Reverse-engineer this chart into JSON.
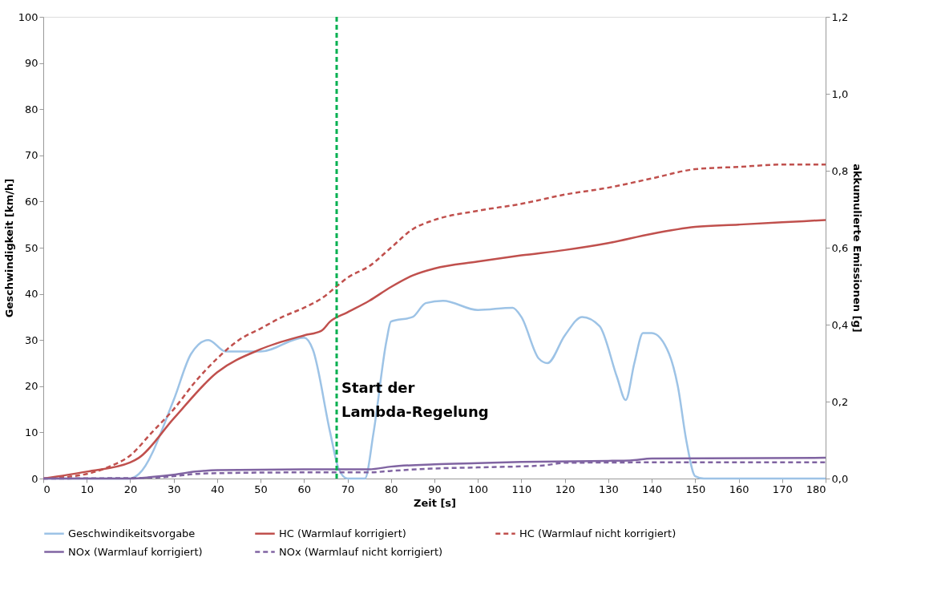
{
  "chart_data": {
    "type": "line",
    "xlabel": "Zeit [s]",
    "ylabel": "Geschwindigkeit [km/h]",
    "y2label": "akkumulierte Emissionen [g]",
    "xlim": [
      0,
      180
    ],
    "xticks": [
      0,
      10,
      20,
      30,
      40,
      50,
      60,
      70,
      80,
      90,
      100,
      110,
      120,
      130,
      140,
      150,
      160,
      170,
      180
    ],
    "ylim": [
      0,
      100
    ],
    "yticks": [
      0,
      10,
      20,
      30,
      40,
      50,
      60,
      70,
      80,
      90,
      100
    ],
    "y2lim": [
      0,
      1.2
    ],
    "y2ticks": [
      {
        "value": 0,
        "label": "0,0"
      },
      {
        "value": 0.2,
        "label": "0,2"
      },
      {
        "value": 0.4,
        "label": "0,4"
      },
      {
        "value": 0.6,
        "label": "0,6"
      },
      {
        "value": 0.8,
        "label": "0,8"
      },
      {
        "value": 1.0,
        "label": "1,0"
      },
      {
        "value": 1.2,
        "label": "1,2"
      }
    ],
    "grid": false,
    "legend": "bottom",
    "marker": "none",
    "series": [
      {
        "name": "Geschwindikeitsvorgabe",
        "color": "#9dc3e6",
        "line_style": "solid",
        "x": [
          0,
          20,
          22,
          30,
          34,
          38,
          42,
          50,
          60,
          62,
          66,
          68,
          70,
          74,
          76,
          79,
          80,
          85,
          88,
          92,
          100,
          108,
          110,
          114,
          116,
          120,
          124,
          128,
          132,
          134,
          136,
          138,
          140,
          144,
          146,
          148,
          150,
          152,
          180
        ],
        "values": [
          0,
          0,
          1,
          17,
          27,
          30,
          27.5,
          27.5,
          30.5,
          28,
          10,
          2,
          0,
          0,
          10,
          30,
          34,
          35,
          38,
          38.5,
          36.5,
          37,
          35,
          26,
          25,
          31,
          35,
          33,
          22,
          17,
          25,
          31.5,
          31.5,
          27,
          20,
          8,
          0.5,
          0,
          0
        ]
      },
      {
        "name": "HC (Warmlauf korrigiert)",
        "color": "#c0504d",
        "line_style": "solid",
        "axis": "y2",
        "x": [
          0,
          10,
          20,
          22,
          30,
          40,
          50,
          60,
          64,
          66,
          70,
          75,
          80,
          85,
          90,
          100,
          110,
          120,
          130,
          140,
          150,
          160,
          170,
          180
        ],
        "values": [
          0,
          0.018,
          0.042,
          0.054,
          0.156,
          0.276,
          0.336,
          0.372,
          0.384,
          0.408,
          0.432,
          0.462,
          0.498,
          0.528,
          0.546,
          0.564,
          0.58,
          0.594,
          0.612,
          0.636,
          0.654,
          0.66,
          0.666,
          0.672
        ]
      },
      {
        "name": "HC (Warmlauf nicht korrigiert)",
        "color": "#c0504d",
        "line_style": "dashed",
        "axis": "y2",
        "x": [
          0,
          10,
          15,
          20,
          25,
          30,
          35,
          40,
          45,
          50,
          55,
          60,
          64,
          68,
          70,
          75,
          80,
          85,
          90,
          100,
          110,
          120,
          130,
          140,
          150,
          160,
          170,
          180
        ],
        "values": [
          0,
          0.012,
          0.03,
          0.06,
          0.12,
          0.18,
          0.252,
          0.312,
          0.36,
          0.39,
          0.42,
          0.444,
          0.468,
          0.504,
          0.522,
          0.552,
          0.6,
          0.648,
          0.672,
          0.696,
          0.714,
          0.738,
          0.756,
          0.78,
          0.804,
          0.81,
          0.816,
          0.816
        ]
      },
      {
        "name": "NOx (Warmlauf korrigiert)",
        "color": "#8064a2",
        "line_style": "solid",
        "axis": "y2",
        "x": [
          0,
          20,
          25,
          30,
          35,
          40,
          60,
          75,
          80,
          90,
          100,
          110,
          130,
          135,
          140,
          180
        ],
        "values": [
          0,
          0,
          0.004,
          0.01,
          0.018,
          0.022,
          0.024,
          0.024,
          0.031,
          0.037,
          0.04,
          0.043,
          0.046,
          0.047,
          0.052,
          0.054
        ]
      },
      {
        "name": "NOx (Warmlauf nicht korrigiert)",
        "color": "#8064a2",
        "line_style": "dashed",
        "axis": "y2",
        "x": [
          0,
          25,
          30,
          35,
          40,
          60,
          75,
          80,
          90,
          100,
          115,
          120,
          140,
          180
        ],
        "values": [
          0,
          0.002,
          0.006,
          0.012,
          0.014,
          0.016,
          0.016,
          0.02,
          0.026,
          0.029,
          0.034,
          0.041,
          0.042,
          0.042
        ]
      }
    ],
    "ref_lines": [
      {
        "axis": "x",
        "value": 67.5,
        "label": "Start der\nLambda-Regelung",
        "color": "#00b050",
        "line_style": "dashed"
      }
    ]
  }
}
